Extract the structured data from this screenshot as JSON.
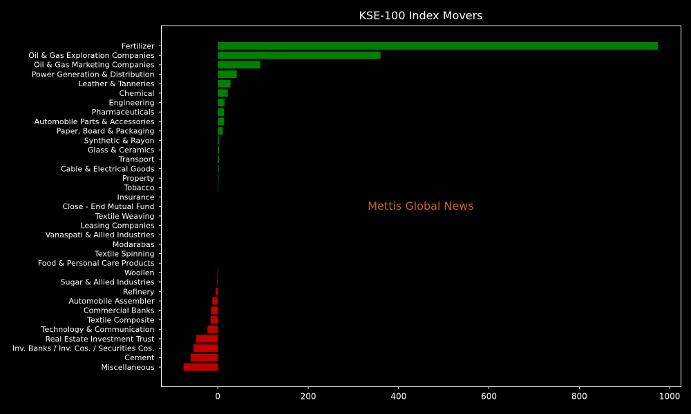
{
  "chart_data": {
    "type": "bar",
    "orientation": "horizontal",
    "title": "KSE-100 Index Movers",
    "watermark": "Mettis Global News",
    "xlabel": "",
    "ylabel": "",
    "xlim": [
      -125,
      1025
    ],
    "xticks": [
      0,
      200,
      400,
      600,
      800,
      1000
    ],
    "grid": false,
    "legend": "none",
    "colors": {
      "background": "#000000",
      "axes": "#ffffff",
      "text": "#ffffff",
      "positive": "#008000",
      "negative": "#c00000",
      "watermark": "#c86414"
    },
    "categories": [
      "Fertilizer",
      "Oil & Gas Exploration Companies",
      "Oil & Gas Marketing Companies",
      "Power Generation & Distribution",
      "Leather & Tanneries",
      "Chemical",
      "Engineering",
      "Pharmaceuticals",
      "Automobile Parts & Accessories",
      "Paper, Board & Packaging",
      "Synthetic & Rayon",
      "Glass & Ceramics",
      "Transport",
      "Cable & Electrical Goods",
      "Property",
      "Tobacco",
      "Insurance",
      "Close - End Mutual Fund",
      "Textile Weaving",
      "Leasing Companies",
      "Vanaspati & Allied Industries",
      "Modarabas",
      "Textile Spinning",
      "Food & Personal Care Products",
      "Woollen",
      "Sugar & Allied Industries",
      "Refinery",
      "Automobile Assembler",
      "Commercial Banks",
      "Textile Composite",
      "Technology & Communication",
      "Real Estate Investment Trust",
      "Inv. Banks / Inv. Cos. / Securities Cos.",
      "Cement",
      "Miscellaneous"
    ],
    "values": [
      974,
      360,
      94,
      42,
      28,
      22,
      15,
      14,
      14,
      11,
      3,
      3,
      3,
      2,
      1.5,
      1,
      0,
      0,
      0,
      0,
      0,
      0,
      0,
      0,
      -1,
      -1.5,
      -5,
      -12,
      -15,
      -16,
      -23,
      -48,
      -54,
      -60,
      -76
    ]
  }
}
